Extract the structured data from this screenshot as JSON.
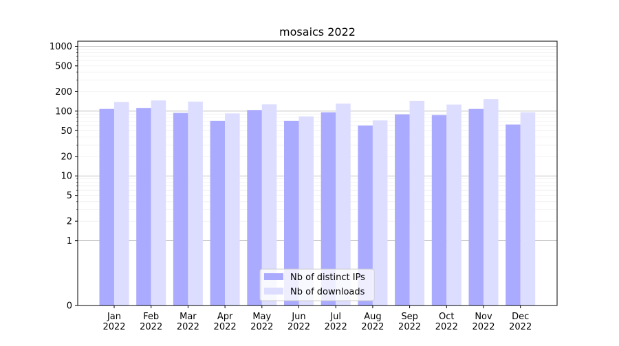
{
  "chart_data": {
    "type": "bar",
    "title": "mosaics 2022",
    "xlabel": "",
    "ylabel": "",
    "categories": [
      [
        "Jan",
        "2022"
      ],
      [
        "Feb",
        "2022"
      ],
      [
        "Mar",
        "2022"
      ],
      [
        "Apr",
        "2022"
      ],
      [
        "May",
        "2022"
      ],
      [
        "Jun",
        "2022"
      ],
      [
        "Jul",
        "2022"
      ],
      [
        "Aug",
        "2022"
      ],
      [
        "Sep",
        "2022"
      ],
      [
        "Oct",
        "2022"
      ],
      [
        "Nov",
        "2022"
      ],
      [
        "Dec",
        "2022"
      ]
    ],
    "y_scale": "symlog",
    "ylim": [
      0,
      1200
    ],
    "y_ticks": [
      0,
      1,
      2,
      5,
      10,
      20,
      50,
      100,
      200,
      500,
      1000
    ],
    "y_tick_labels": [
      "0",
      "1",
      "2",
      "5",
      "10",
      "20",
      "50",
      "100",
      "200",
      "500",
      "1000"
    ],
    "grid": true,
    "legend_position": "bottom-center",
    "series": [
      {
        "name": "Nb of distinct IPs",
        "color": "#aaaaff",
        "values": [
          108,
          112,
          94,
          71,
          104,
          71,
          96,
          60,
          89,
          87,
          108,
          62
        ]
      },
      {
        "name": "Nb of downloads",
        "color": "#ddddff",
        "values": [
          138,
          146,
          140,
          92,
          127,
          83,
          131,
          72,
          144,
          126,
          154,
          96
        ]
      }
    ]
  }
}
